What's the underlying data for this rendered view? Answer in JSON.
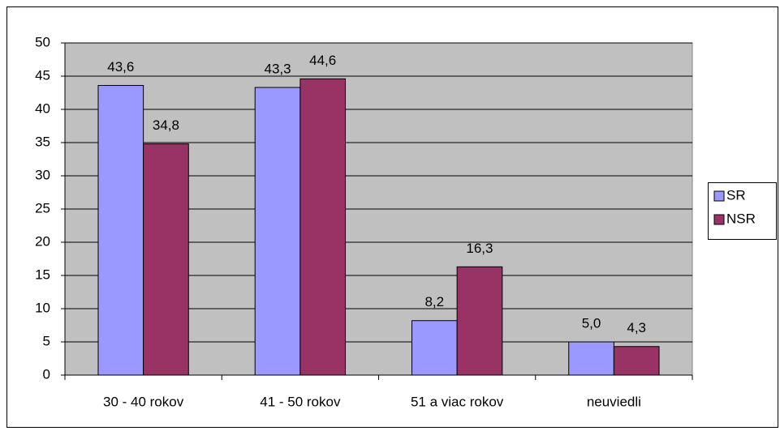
{
  "chart_data": {
    "type": "bar",
    "categories": [
      "30 - 40 rokov",
      "41 - 50 rokov",
      "51 a viac rokov",
      "neuviedli"
    ],
    "series": [
      {
        "name": "SR",
        "color": "#9999ff",
        "values": [
          43.6,
          43.3,
          8.2,
          5.0
        ],
        "value_labels": [
          "43,6",
          "43,3",
          "8,2",
          "5,0"
        ]
      },
      {
        "name": "NSR",
        "color": "#993366",
        "values": [
          34.8,
          44.6,
          16.3,
          4.3
        ],
        "value_labels": [
          "34,8",
          "44,6",
          "16,3",
          "4,3"
        ]
      }
    ],
    "ylim": [
      0,
      50
    ],
    "yticks": [
      0,
      5,
      10,
      15,
      20,
      25,
      30,
      35,
      40,
      45,
      50
    ],
    "grid": true,
    "legend": "right",
    "plot_background": "#c0c0c0"
  }
}
